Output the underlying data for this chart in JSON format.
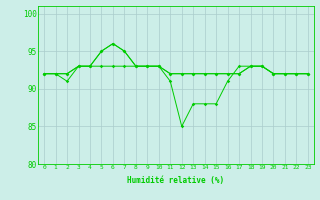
{
  "xlabel": "Humidité relative (%)",
  "background_color": "#cceee8",
  "grid_color": "#aacccc",
  "line_color": "#00cc00",
  "xlim": [
    -0.5,
    23.5
  ],
  "ylim": [
    80,
    101
  ],
  "yticks": [
    80,
    85,
    90,
    95,
    100
  ],
  "xticks": [
    0,
    1,
    2,
    3,
    4,
    5,
    6,
    7,
    8,
    9,
    10,
    11,
    12,
    13,
    14,
    15,
    16,
    17,
    18,
    19,
    20,
    21,
    22,
    23
  ],
  "series1": [
    92,
    92,
    92,
    93,
    93,
    93,
    93,
    93,
    93,
    93,
    93,
    92,
    92,
    92,
    92,
    92,
    92,
    92,
    93,
    93,
    92,
    92,
    92,
    92
  ],
  "series2": [
    92,
    92,
    92,
    93,
    93,
    95,
    96,
    95,
    93,
    93,
    93,
    92,
    92,
    92,
    92,
    92,
    92,
    92,
    93,
    93,
    92,
    92,
    92,
    92
  ],
  "series3": [
    92,
    92,
    91,
    93,
    93,
    95,
    96,
    95,
    93,
    93,
    93,
    91,
    85,
    88,
    88,
    88,
    91,
    93,
    93,
    93,
    92,
    92,
    92,
    92
  ]
}
